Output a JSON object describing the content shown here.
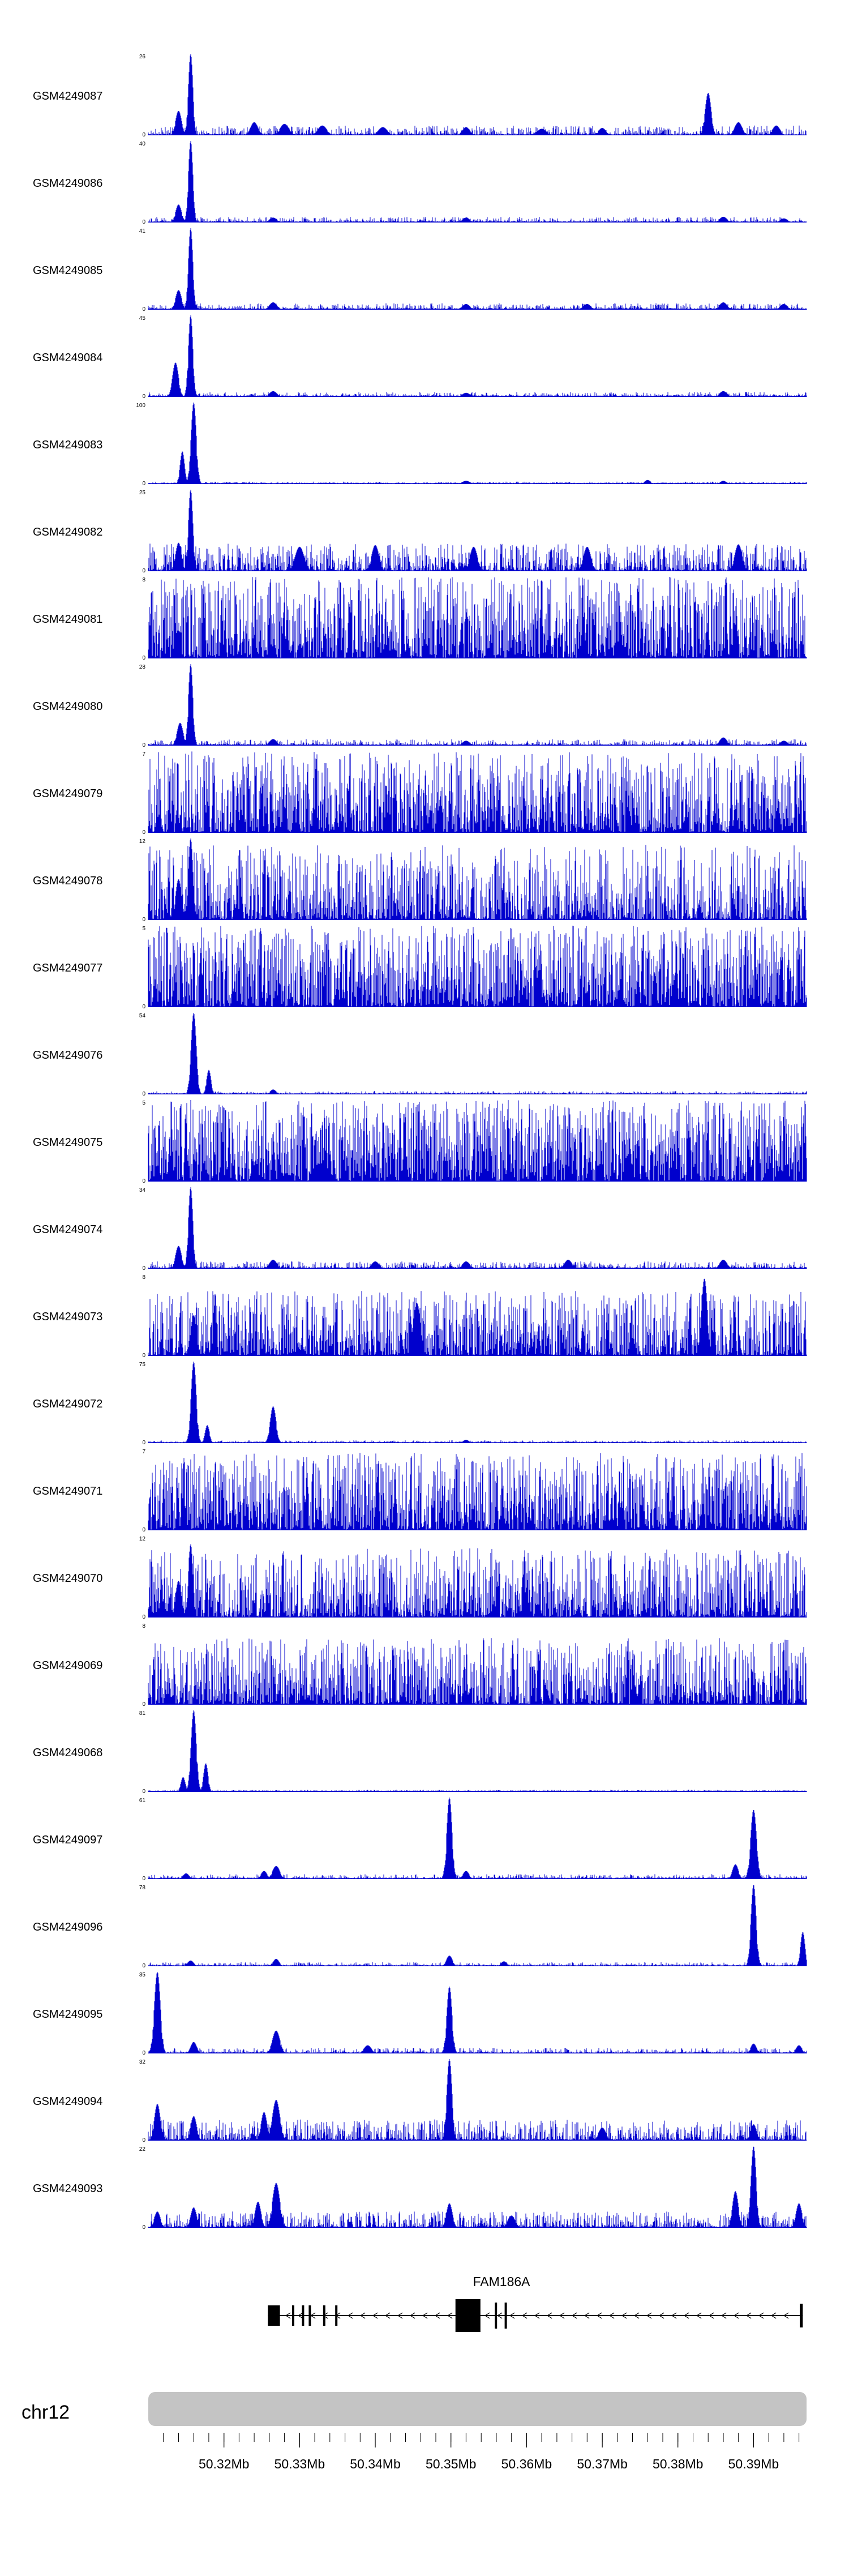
{
  "chart_data": {
    "type": "area",
    "title": "",
    "signal_color": "#0000CD",
    "x_axis": {
      "chromosome": "chr12",
      "range_mb": [
        50.31,
        50.397
      ],
      "ticks": [
        "50.32Mb",
        "50.33Mb",
        "50.34Mb",
        "50.35Mb",
        "50.36Mb",
        "50.37Mb",
        "50.38Mb",
        "50.39Mb"
      ],
      "tick_values": [
        50.32,
        50.33,
        50.34,
        50.35,
        50.36,
        50.37,
        50.38,
        50.39
      ]
    },
    "tracks": [
      {
        "name": "GSM4249087",
        "ylim": [
          0,
          26
        ],
        "noise_amp": 0.12,
        "noise_pow": 3.2,
        "peaks": [
          [
            50.3156,
            1,
            0.0003
          ],
          [
            50.314,
            0.3,
            0.0004
          ],
          [
            50.324,
            0.16,
            0.0005
          ],
          [
            50.328,
            0.14,
            0.0006
          ],
          [
            50.333,
            0.12,
            0.0006
          ],
          [
            50.341,
            0.1,
            0.0006
          ],
          [
            50.352,
            0.1,
            0.0005
          ],
          [
            50.362,
            0.08,
            0.0006
          ],
          [
            50.37,
            0.09,
            0.0005
          ],
          [
            50.384,
            0.52,
            0.0004
          ],
          [
            50.388,
            0.16,
            0.0005
          ],
          [
            50.393,
            0.12,
            0.0005
          ]
        ]
      },
      {
        "name": "GSM4249086",
        "ylim": [
          0,
          40
        ],
        "noise_amp": 0.07,
        "noise_pow": 3.4,
        "peaks": [
          [
            50.3156,
            1,
            0.0003
          ],
          [
            50.314,
            0.22,
            0.0004
          ],
          [
            50.3265,
            0.06,
            0.0005
          ],
          [
            50.352,
            0.06,
            0.0005
          ],
          [
            50.386,
            0.07,
            0.0005
          ],
          [
            50.394,
            0.05,
            0.0005
          ]
        ]
      },
      {
        "name": "GSM4249085",
        "ylim": [
          0,
          41
        ],
        "noise_amp": 0.08,
        "noise_pow": 3.3,
        "peaks": [
          [
            50.3156,
            1,
            0.0003
          ],
          [
            50.314,
            0.24,
            0.0004
          ],
          [
            50.3265,
            0.09,
            0.0005
          ],
          [
            50.352,
            0.07,
            0.0005
          ],
          [
            50.368,
            0.07,
            0.0005
          ],
          [
            50.386,
            0.09,
            0.0005
          ],
          [
            50.394,
            0.07,
            0.0005
          ]
        ]
      },
      {
        "name": "GSM4249084",
        "ylim": [
          0,
          45
        ],
        "noise_amp": 0.06,
        "noise_pow": 3.4,
        "peaks": [
          [
            50.3156,
            1,
            0.0003
          ],
          [
            50.3136,
            0.42,
            0.0004
          ],
          [
            50.3265,
            0.07,
            0.0005
          ],
          [
            50.352,
            0.05,
            0.0005
          ],
          [
            50.386,
            0.07,
            0.0005
          ]
        ]
      },
      {
        "name": "GSM4249083",
        "ylim": [
          0,
          100
        ],
        "noise_amp": 0.03,
        "noise_pow": 3.6,
        "peaks": [
          [
            50.316,
            1,
            0.00035
          ],
          [
            50.3145,
            0.4,
            0.0003
          ],
          [
            50.352,
            0.04,
            0.0005
          ],
          [
            50.376,
            0.05,
            0.0004
          ],
          [
            50.386,
            0.04,
            0.0004
          ]
        ]
      },
      {
        "name": "GSM4249082",
        "ylim": [
          0,
          25
        ],
        "noise_amp": 0.34,
        "noise_pow": 2.6,
        "peaks": [
          [
            50.3156,
            1,
            0.0003
          ],
          [
            50.314,
            0.35,
            0.0004
          ],
          [
            50.33,
            0.3,
            0.0006
          ],
          [
            50.34,
            0.32,
            0.0005
          ],
          [
            50.353,
            0.3,
            0.0005
          ],
          [
            50.368,
            0.3,
            0.0005
          ],
          [
            50.388,
            0.33,
            0.0005
          ]
        ]
      },
      {
        "name": "GSM4249081",
        "ylim": [
          0,
          8
        ],
        "noise_amp": 1.0,
        "noise_pow": 1.6,
        "peaks": []
      },
      {
        "name": "GSM4249080",
        "ylim": [
          0,
          28
        ],
        "noise_amp": 0.08,
        "noise_pow": 3.2,
        "peaks": [
          [
            50.3156,
            1,
            0.0003
          ],
          [
            50.3142,
            0.28,
            0.0004
          ],
          [
            50.3265,
            0.08,
            0.0005
          ],
          [
            50.352,
            0.06,
            0.0005
          ],
          [
            50.386,
            0.1,
            0.0005
          ],
          [
            50.394,
            0.06,
            0.0005
          ]
        ]
      },
      {
        "name": "GSM4249079",
        "ylim": [
          0,
          7
        ],
        "noise_amp": 1.0,
        "noise_pow": 1.7,
        "peaks": []
      },
      {
        "name": "GSM4249078",
        "ylim": [
          0,
          12
        ],
        "noise_amp": 0.92,
        "noise_pow": 2.1,
        "peaks": [
          [
            50.3156,
            1,
            0.0003
          ],
          [
            50.314,
            0.5,
            0.0004
          ]
        ]
      },
      {
        "name": "GSM4249077",
        "ylim": [
          0,
          5
        ],
        "noise_amp": 1.0,
        "noise_pow": 1.5,
        "peaks": []
      },
      {
        "name": "GSM4249076",
        "ylim": [
          0,
          54
        ],
        "noise_amp": 0.04,
        "noise_pow": 3.5,
        "peaks": [
          [
            50.316,
            1,
            0.00035
          ],
          [
            50.318,
            0.3,
            0.0003
          ],
          [
            50.3265,
            0.06,
            0.0004
          ]
        ]
      },
      {
        "name": "GSM4249075",
        "ylim": [
          0,
          5
        ],
        "noise_amp": 1.0,
        "noise_pow": 1.35,
        "peaks": []
      },
      {
        "name": "GSM4249074",
        "ylim": [
          0,
          34
        ],
        "noise_amp": 0.09,
        "noise_pow": 3.2,
        "peaks": [
          [
            50.3156,
            1,
            0.0003
          ],
          [
            50.314,
            0.28,
            0.0004
          ],
          [
            50.3265,
            0.11,
            0.0005
          ],
          [
            50.34,
            0.09,
            0.0005
          ],
          [
            50.352,
            0.09,
            0.0005
          ],
          [
            50.3655,
            0.11,
            0.0005
          ],
          [
            50.386,
            0.11,
            0.0005
          ]
        ]
      },
      {
        "name": "GSM4249073",
        "ylim": [
          0,
          8
        ],
        "noise_amp": 0.8,
        "noise_pow": 1.9,
        "peaks": [
          [
            50.3835,
            0.95,
            0.0004
          ],
          [
            50.3455,
            0.65,
            0.0005
          ],
          [
            50.316,
            0.5,
            0.0004
          ]
        ]
      },
      {
        "name": "GSM4249072",
        "ylim": [
          0,
          75
        ],
        "noise_amp": 0.035,
        "noise_pow": 3.5,
        "peaks": [
          [
            50.316,
            1,
            0.00035
          ],
          [
            50.3178,
            0.22,
            0.0003
          ],
          [
            50.3265,
            0.45,
            0.0004
          ],
          [
            50.352,
            0.04,
            0.0004
          ]
        ]
      },
      {
        "name": "GSM4249071",
        "ylim": [
          0,
          7
        ],
        "noise_amp": 0.95,
        "noise_pow": 1.6,
        "peaks": []
      },
      {
        "name": "GSM4249070",
        "ylim": [
          0,
          12
        ],
        "noise_amp": 0.85,
        "noise_pow": 1.95,
        "peaks": [
          [
            50.3156,
            0.9,
            0.0003
          ],
          [
            50.314,
            0.45,
            0.0004
          ]
        ]
      },
      {
        "name": "GSM4249069",
        "ylim": [
          0,
          8
        ],
        "noise_amp": 0.82,
        "noise_pow": 1.8,
        "peaks": []
      },
      {
        "name": "GSM4249068",
        "ylim": [
          0,
          81
        ],
        "noise_amp": 0.025,
        "noise_pow": 3.6,
        "peaks": [
          [
            50.316,
            1,
            0.00035
          ],
          [
            50.3176,
            0.35,
            0.0003
          ],
          [
            50.3146,
            0.18,
            0.0003
          ]
        ]
      },
      {
        "name": "GSM4249097",
        "ylim": [
          0,
          61
        ],
        "noise_amp": 0.06,
        "noise_pow": 3.3,
        "peaks": [
          [
            50.3498,
            1,
            0.00035
          ],
          [
            50.3269,
            0.16,
            0.0005
          ],
          [
            50.3253,
            0.1,
            0.0004
          ],
          [
            50.352,
            0.1,
            0.0004
          ],
          [
            50.39,
            0.85,
            0.0004
          ],
          [
            50.3876,
            0.18,
            0.0004
          ],
          [
            50.315,
            0.07,
            0.0004
          ]
        ]
      },
      {
        "name": "GSM4249096",
        "ylim": [
          0,
          78
        ],
        "noise_amp": 0.05,
        "noise_pow": 3.4,
        "peaks": [
          [
            50.39,
            1,
            0.00035
          ],
          [
            50.3965,
            0.42,
            0.0003
          ],
          [
            50.3498,
            0.13,
            0.0004
          ],
          [
            50.3269,
            0.09,
            0.0004
          ],
          [
            50.3156,
            0.07,
            0.0004
          ],
          [
            50.357,
            0.06,
            0.0004
          ]
        ]
      },
      {
        "name": "GSM4249095",
        "ylim": [
          0,
          35
        ],
        "noise_amp": 0.07,
        "noise_pow": 3.3,
        "peaks": [
          [
            50.3112,
            1,
            0.0004
          ],
          [
            50.3498,
            0.82,
            0.00035
          ],
          [
            50.3269,
            0.28,
            0.0005
          ],
          [
            50.316,
            0.14,
            0.0004
          ],
          [
            50.339,
            0.1,
            0.0005
          ],
          [
            50.39,
            0.12,
            0.0004
          ],
          [
            50.396,
            0.1,
            0.0004
          ]
        ]
      },
      {
        "name": "GSM4249094",
        "ylim": [
          0,
          32
        ],
        "noise_amp": 0.26,
        "noise_pow": 2.7,
        "peaks": [
          [
            50.3498,
            1,
            0.00035
          ],
          [
            50.3269,
            0.5,
            0.0005
          ],
          [
            50.3253,
            0.35,
            0.0004
          ],
          [
            50.316,
            0.3,
            0.0004
          ],
          [
            50.3112,
            0.45,
            0.0004
          ],
          [
            50.37,
            0.16,
            0.0005
          ],
          [
            50.39,
            0.2,
            0.0004
          ]
        ]
      },
      {
        "name": "GSM4249093",
        "ylim": [
          0,
          22
        ],
        "noise_amp": 0.2,
        "noise_pow": 2.8,
        "peaks": [
          [
            50.39,
            1,
            0.00035
          ],
          [
            50.3876,
            0.45,
            0.0004
          ],
          [
            50.396,
            0.3,
            0.0004
          ],
          [
            50.3498,
            0.3,
            0.0004
          ],
          [
            50.3269,
            0.55,
            0.0005
          ],
          [
            50.3245,
            0.32,
            0.0004
          ],
          [
            50.316,
            0.25,
            0.0004
          ],
          [
            50.3112,
            0.2,
            0.0004
          ],
          [
            50.358,
            0.15,
            0.0005
          ]
        ]
      }
    ],
    "gene_annotation": {
      "label": "FAM186A",
      "start_mb": 50.3258,
      "end_mb": 50.3965,
      "strand": "minus",
      "exons": [
        {
          "start": 50.3258,
          "end": 50.3274,
          "h": 36
        },
        {
          "start": 50.329,
          "end": 50.3293,
          "h": 36
        },
        {
          "start": 50.3303,
          "end": 50.3306,
          "h": 36
        },
        {
          "start": 50.3312,
          "end": 50.3315,
          "h": 36
        },
        {
          "start": 50.3331,
          "end": 50.3334,
          "h": 36
        },
        {
          "start": 50.3347,
          "end": 50.335,
          "h": 36
        },
        {
          "start": 50.3506,
          "end": 50.3539,
          "h": 58
        },
        {
          "start": 50.3558,
          "end": 50.3561,
          "h": 46
        },
        {
          "start": 50.3571,
          "end": 50.3574,
          "h": 46
        },
        {
          "start": 50.3961,
          "end": 50.3965,
          "h": 42
        }
      ]
    },
    "ideogram": {
      "chromosome": "chr12",
      "color": "#C4C4C4"
    }
  }
}
